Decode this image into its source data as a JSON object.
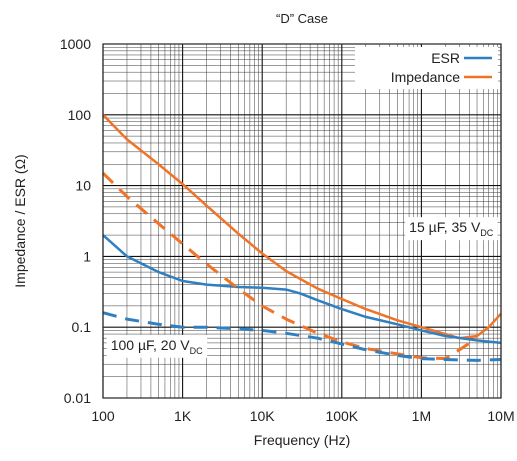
{
  "chart_data": {
    "type": "line",
    "title": "“D” Case",
    "xlabel": "Frequency (Hz)",
    "ylabel": "Impedance / ESR (Ω)",
    "x_scale": "log",
    "y_scale": "log",
    "xlim": [
      100,
      10000000
    ],
    "ylim": [
      0.01,
      1000
    ],
    "x_ticks": [
      {
        "value": 100,
        "label": "100"
      },
      {
        "value": 1000,
        "label": "1K"
      },
      {
        "value": 10000,
        "label": "10K"
      },
      {
        "value": 100000,
        "label": "100K"
      },
      {
        "value": 1000000,
        "label": "1M"
      },
      {
        "value": 10000000,
        "label": "10M"
      }
    ],
    "y_ticks": [
      {
        "value": 0.01,
        "label": "0.01"
      },
      {
        "value": 0.1,
        "label": "0.1"
      },
      {
        "value": 1,
        "label": "1"
      },
      {
        "value": 10,
        "label": "10"
      },
      {
        "value": 100,
        "label": "100"
      },
      {
        "value": 1000,
        "label": "1000"
      }
    ],
    "grid": true,
    "legend": {
      "position": "top-right",
      "entries": [
        {
          "label": "ESR",
          "color": "#2f7fc1"
        },
        {
          "label": "Impedance",
          "color": "#f07326"
        }
      ]
    },
    "annotations": [
      {
        "main": "15 µF, 35 V",
        "sub": "DC",
        "x": 8000000,
        "y": 2.2
      },
      {
        "main": "100 µF, 20 V",
        "sub": "DC",
        "x": 125,
        "y": 0.048
      }
    ],
    "series": [
      {
        "name": "Impedance",
        "group": "15 µF, 35 VDC",
        "color": "#f07326",
        "dashed": false,
        "x": [
          100,
          200,
          500,
          1000,
          2000,
          5000,
          10000,
          20000,
          50000,
          100000,
          200000,
          500000,
          1000000,
          2000000,
          3000000,
          5000000,
          7000000,
          10000000
        ],
        "y": [
          100,
          45,
          20,
          10.5,
          5.2,
          2.1,
          1.1,
          0.62,
          0.35,
          0.25,
          0.18,
          0.125,
          0.1,
          0.08,
          0.07,
          0.075,
          0.1,
          0.155
        ]
      },
      {
        "name": "ESR",
        "group": "15 µF, 35 VDC",
        "color": "#2f7fc1",
        "dashed": false,
        "x": [
          100,
          200,
          500,
          1000,
          2000,
          5000,
          10000,
          20000,
          30000,
          50000,
          100000,
          200000,
          500000,
          1000000,
          2000000,
          5000000,
          10000000
        ],
        "y": [
          2.0,
          1.0,
          0.6,
          0.45,
          0.4,
          0.37,
          0.36,
          0.34,
          0.3,
          0.24,
          0.18,
          0.14,
          0.11,
          0.09,
          0.075,
          0.065,
          0.06
        ]
      },
      {
        "name": "Impedance",
        "group": "100 µF, 20 VDC",
        "color": "#f07326",
        "dashed": true,
        "x": [
          100,
          200,
          500,
          1000,
          2000,
          5000,
          10000,
          20000,
          50000,
          100000,
          200000,
          500000,
          1000000,
          2000000,
          3000000,
          5000000
        ],
        "y": [
          15,
          7,
          2.9,
          1.5,
          0.78,
          0.35,
          0.2,
          0.13,
          0.082,
          0.062,
          0.05,
          0.042,
          0.037,
          0.036,
          0.048,
          0.07
        ]
      },
      {
        "name": "ESR",
        "group": "100 µF, 20 VDC",
        "color": "#2f7fc1",
        "dashed": true,
        "x": [
          100,
          200,
          500,
          1000,
          2000,
          5000,
          10000,
          20000,
          50000,
          100000,
          200000,
          500000,
          1000000,
          2000000,
          5000000,
          10000000
        ],
        "y": [
          0.16,
          0.13,
          0.11,
          0.1,
          0.1,
          0.095,
          0.09,
          0.082,
          0.07,
          0.058,
          0.048,
          0.04,
          0.036,
          0.035,
          0.034,
          0.035
        ]
      }
    ]
  }
}
